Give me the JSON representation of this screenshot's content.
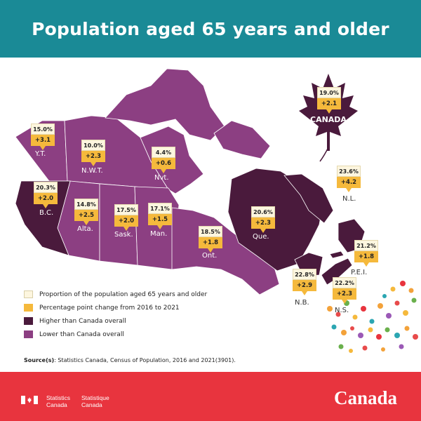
{
  "header": {
    "title": "Population aged 65 years and older"
  },
  "colors": {
    "header_bg": "#1a8a96",
    "higher": "#4a1a3c",
    "lower": "#8c3f82",
    "pct_box": "#fdf6df",
    "change_box": "#f5b93c",
    "footer_bg": "#e8343e"
  },
  "canada": {
    "name": "CANADA",
    "pct": "19.0%",
    "change": "+2.1"
  },
  "regions": [
    {
      "id": "yt",
      "label": "Y.T.",
      "pct": "15.0%",
      "change": "+3.1",
      "category": "lower"
    },
    {
      "id": "nwt",
      "label": "N.W.T.",
      "pct": "10.0%",
      "change": "+2.3",
      "category": "lower"
    },
    {
      "id": "nvt",
      "label": "Nvt.",
      "pct": "4.4%",
      "change": "+0.6",
      "category": "lower"
    },
    {
      "id": "bc",
      "label": "B.C.",
      "pct": "20.3%",
      "change": "+2.0",
      "category": "higher"
    },
    {
      "id": "alta",
      "label": "Alta.",
      "pct": "14.8%",
      "change": "+2.5",
      "category": "lower"
    },
    {
      "id": "sask",
      "label": "Sask.",
      "pct": "17.5%",
      "change": "+2.0",
      "category": "lower"
    },
    {
      "id": "man",
      "label": "Man.",
      "pct": "17.1%",
      "change": "+1.5",
      "category": "lower"
    },
    {
      "id": "ont",
      "label": "Ont.",
      "pct": "18.5%",
      "change": "+1.8",
      "category": "lower"
    },
    {
      "id": "que",
      "label": "Que.",
      "pct": "20.6%",
      "change": "+2.3",
      "category": "higher"
    },
    {
      "id": "nl",
      "label": "N.L.",
      "pct": "23.6%",
      "change": "+4.2",
      "category": "higher"
    },
    {
      "id": "pei",
      "label": "P.E.I.",
      "pct": "21.2%",
      "change": "+1.8",
      "category": "higher"
    },
    {
      "id": "nb",
      "label": "N.B.",
      "pct": "22.8%",
      "change": "+2.9",
      "category": "higher"
    },
    {
      "id": "ns",
      "label": "N.S.",
      "pct": "22.2%",
      "change": "+2.3",
      "category": "higher"
    }
  ],
  "legend": {
    "proportion": "Proportion of the population aged 65 years and older",
    "change": "Percentage point change from 2016 to 2021",
    "higher": "Higher than Canada overall",
    "lower": "Lower than Canada overall"
  },
  "source": {
    "label": "Source(s)",
    "text": ": Statistics Canada, Census of Population, 2016 and 2021(3901)."
  },
  "footer": {
    "agency_en_1": "Statistics",
    "agency_en_2": "Canada",
    "agency_fr_1": "Statistique",
    "agency_fr_2": "Canada",
    "wordmark": "Canada"
  }
}
